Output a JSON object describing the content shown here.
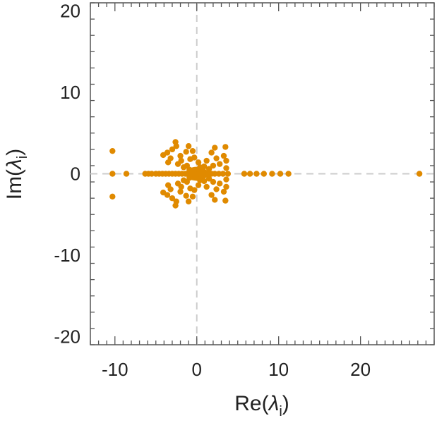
{
  "chart_data": {
    "type": "scatter",
    "xlabel_main": "Re(",
    "xlabel_lambda": "λ",
    "xlabel_sub": "i",
    "xlabel_close": ")",
    "ylabel_main": "Im(",
    "ylabel_lambda": "λ",
    "ylabel_sub": "i",
    "ylabel_close": ")",
    "xlim": [
      -13,
      29
    ],
    "ylim": [
      -21,
      21
    ],
    "xticks": [
      -10,
      0,
      10,
      20
    ],
    "yticks": [
      -20,
      -10,
      0,
      10,
      20
    ],
    "xtick_labels": [
      "-10",
      "0",
      "10",
      "20"
    ],
    "ytick_labels": [
      "-20",
      "-10",
      "0",
      "10",
      "20"
    ],
    "grid": false,
    "reference_lines": [
      {
        "axis": "x",
        "value": 0
      },
      {
        "axis": "y",
        "value": 0
      }
    ],
    "marker_color": "#e08a00",
    "points": [
      [
        -10.3,
        2.8
      ],
      [
        -10.3,
        -2.8
      ],
      [
        -10.3,
        0
      ],
      [
        -8.6,
        0
      ],
      [
        -6.3,
        0
      ],
      [
        -5.9,
        0
      ],
      [
        -5.5,
        0
      ],
      [
        -5.0,
        0
      ],
      [
        -4.6,
        0
      ],
      [
        -4.2,
        0
      ],
      [
        -3.8,
        0
      ],
      [
        -3.4,
        0
      ],
      [
        -3.0,
        0
      ],
      [
        -2.6,
        0
      ],
      [
        -4.1,
        2.3
      ],
      [
        -4.1,
        -2.3
      ],
      [
        -3.6,
        2.6
      ],
      [
        -3.6,
        -2.6
      ],
      [
        -3.2,
        1.9
      ],
      [
        -3.2,
        -1.9
      ],
      [
        -3.5,
        1.4
      ],
      [
        -3.5,
        -1.4
      ],
      [
        -3.0,
        3.0
      ],
      [
        -3.0,
        -3.0
      ],
      [
        -2.6,
        3.9
      ],
      [
        -2.6,
        -3.9
      ],
      [
        -2.5,
        3.4
      ],
      [
        -2.5,
        -3.4
      ],
      [
        -2.3,
        1.2
      ],
      [
        -2.3,
        -1.2
      ],
      [
        -2.0,
        2.2
      ],
      [
        -2.0,
        -2.2
      ],
      [
        -1.9,
        1.6
      ],
      [
        -1.9,
        -1.6
      ],
      [
        -1.6,
        0.8
      ],
      [
        -1.6,
        -0.8
      ],
      [
        -1.3,
        2.7
      ],
      [
        -1.3,
        -2.7
      ],
      [
        -1.2,
        1.0
      ],
      [
        -1.2,
        -1.0
      ],
      [
        -1.0,
        3.4
      ],
      [
        -1.0,
        -3.4
      ],
      [
        -0.8,
        1.8
      ],
      [
        -0.8,
        -1.8
      ],
      [
        -0.5,
        2.8
      ],
      [
        -0.5,
        -2.8
      ],
      [
        -0.3,
        2.0
      ],
      [
        -0.3,
        -2.0
      ],
      [
        0.0,
        0.5
      ],
      [
        0.0,
        -0.5
      ],
      [
        0.2,
        1.4
      ],
      [
        0.2,
        -1.4
      ],
      [
        0.4,
        0.8
      ],
      [
        0.4,
        -0.8
      ],
      [
        -0.6,
        0.3
      ],
      [
        -0.6,
        -0.3
      ],
      [
        0.6,
        0.3
      ],
      [
        0.6,
        -0.3
      ],
      [
        0.9,
        0.9
      ],
      [
        0.9,
        -0.9
      ],
      [
        -0.9,
        0.5
      ],
      [
        -0.9,
        -0.5
      ],
      [
        1.2,
        1.6
      ],
      [
        1.2,
        -1.6
      ],
      [
        1.5,
        0.6
      ],
      [
        1.5,
        -0.6
      ],
      [
        1.8,
        2.6
      ],
      [
        1.8,
        -2.6
      ],
      [
        2.0,
        1.0
      ],
      [
        2.0,
        -1.0
      ],
      [
        2.2,
        3.2
      ],
      [
        2.2,
        -3.2
      ],
      [
        2.4,
        1.9
      ],
      [
        2.4,
        -1.9
      ],
      [
        2.8,
        1.2
      ],
      [
        2.8,
        -1.2
      ],
      [
        3.3,
        2.2
      ],
      [
        3.3,
        -2.2
      ],
      [
        3.5,
        3.3
      ],
      [
        3.5,
        -3.3
      ],
      [
        3.6,
        1.6
      ],
      [
        3.6,
        -1.6
      ],
      [
        3.6,
        0.7
      ],
      [
        3.6,
        -0.7
      ],
      [
        -2.2,
        0
      ],
      [
        -1.8,
        0
      ],
      [
        -1.4,
        0
      ],
      [
        -1.0,
        0
      ],
      [
        -0.6,
        0
      ],
      [
        -0.2,
        0
      ],
      [
        0.2,
        0
      ],
      [
        0.6,
        0
      ],
      [
        1.0,
        0
      ],
      [
        1.4,
        0
      ],
      [
        1.8,
        0
      ],
      [
        2.2,
        0
      ],
      [
        2.7,
        0
      ],
      [
        3.2,
        0
      ],
      [
        3.8,
        0
      ],
      [
        5.8,
        0
      ],
      [
        6.5,
        0
      ],
      [
        7.3,
        0
      ],
      [
        8.2,
        0
      ],
      [
        9.2,
        0
      ],
      [
        10.2,
        0
      ],
      [
        11.2,
        0
      ],
      [
        27.2,
        0
      ]
    ],
    "blob": {
      "x": 0,
      "y": 0,
      "rx": 1.4,
      "ry": 0.85
    }
  }
}
